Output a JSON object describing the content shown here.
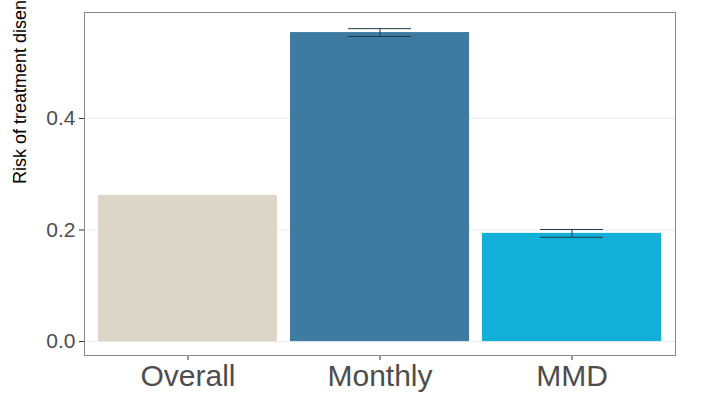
{
  "chart_data": {
    "type": "bar",
    "y_label": "Risk of treatment disengagement",
    "categories": [
      "Overall",
      "Monthly",
      "MMD"
    ],
    "values": [
      0.262,
      0.554,
      0.194
    ],
    "colors": [
      "#ddd6c8",
      "#3d7ba0",
      "#12b0d8"
    ],
    "error_low": [
      null,
      0.547,
      0.187
    ],
    "error_high": [
      null,
      0.561,
      0.201
    ],
    "ylim": [
      -0.025,
      0.59
    ],
    "yticks": [
      {
        "value": 0,
        "label": "0.0"
      },
      0.2,
      0.4
    ],
    "grid": true
  }
}
